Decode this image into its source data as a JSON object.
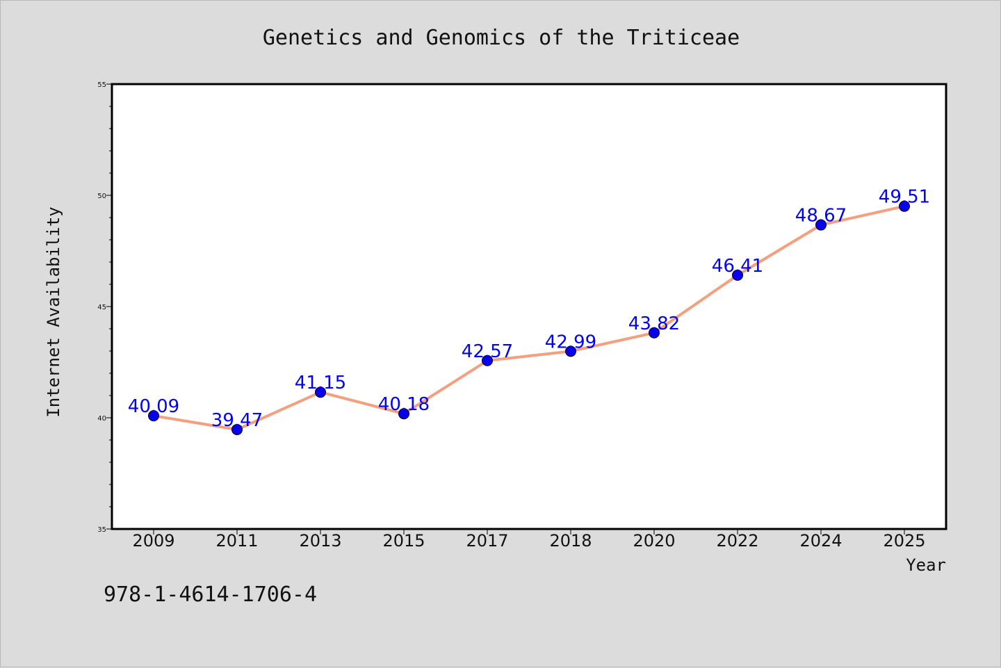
{
  "chart_data": {
    "type": "line",
    "title": "Genetics and Genomics of the Triticeae",
    "xlabel": "Year",
    "ylabel": "Internet Availability",
    "categories": [
      "2009",
      "2011",
      "2013",
      "2015",
      "2017",
      "2018",
      "2020",
      "2022",
      "2024",
      "2025"
    ],
    "series": [
      {
        "values": [
          40.09,
          39.47,
          41.15,
          40.18,
          42.57,
          42.99,
          43.82,
          46.41,
          48.67,
          49.51
        ],
        "labels": [
          "40.09",
          "39.47",
          "41.15",
          "40.18",
          "42.57",
          "42.99",
          "43.82",
          "46.41",
          "48.67",
          "49.51"
        ]
      }
    ],
    "ylim": [
      35,
      55
    ],
    "yticks": [
      "35",
      "40",
      "45",
      "50",
      "55"
    ],
    "grid": false,
    "colors": {
      "line": "#f4a07e",
      "marker": "#0a00f0",
      "data_label": "#0000ff",
      "plot_background": "#ffffff",
      "figure_background": "#dcdcdc"
    }
  },
  "annotation": {
    "isbn": "978-1-4614-1706-4"
  }
}
